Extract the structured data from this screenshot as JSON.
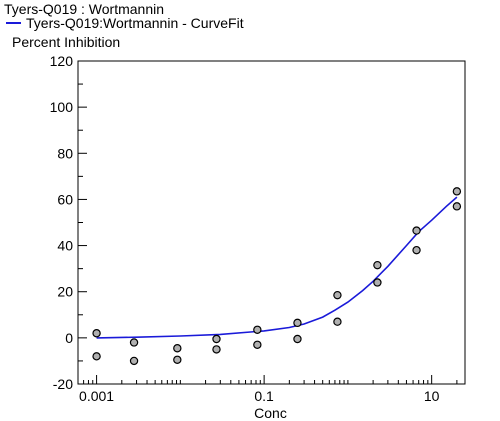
{
  "chart_data": {
    "type": "scatter",
    "title": "Tyers-Q019  : Wortmannin",
    "ylabel": "Percent Inhibition",
    "xlabel": "Conc",
    "xscale": "log",
    "xlim": [
      0.0006,
      25
    ],
    "ylim": [
      -20,
      120
    ],
    "yticks": [
      -20,
      0,
      20,
      40,
      60,
      80,
      100,
      120
    ],
    "xticks": [
      0.001,
      0.1,
      10
    ],
    "xtick_labels": [
      "0.001",
      "0.1",
      "10"
    ],
    "grid": false,
    "legend": [
      {
        "name": "Tyers-Q019:Wortmannin - CurveFit",
        "color": "#1a1ad9"
      }
    ],
    "points": [
      {
        "x": 0.001,
        "y": 2
      },
      {
        "x": 0.001,
        "y": -8
      },
      {
        "x": 0.0028,
        "y": -2
      },
      {
        "x": 0.0028,
        "y": -10
      },
      {
        "x": 0.0092,
        "y": -4.5
      },
      {
        "x": 0.0092,
        "y": -9.5
      },
      {
        "x": 0.027,
        "y": -0.5
      },
      {
        "x": 0.027,
        "y": -5
      },
      {
        "x": 0.083,
        "y": 3.5
      },
      {
        "x": 0.083,
        "y": -3
      },
      {
        "x": 0.25,
        "y": 6.5
      },
      {
        "x": 0.25,
        "y": -0.5
      },
      {
        "x": 0.75,
        "y": 18.5
      },
      {
        "x": 0.75,
        "y": 7
      },
      {
        "x": 2.25,
        "y": 31.5
      },
      {
        "x": 2.25,
        "y": 24
      },
      {
        "x": 6.6,
        "y": 46.5
      },
      {
        "x": 6.6,
        "y": 38
      },
      {
        "x": 20,
        "y": 63.5
      },
      {
        "x": 20,
        "y": 57
      }
    ],
    "curve": {
      "name": "Tyers-Q019:Wortmannin - CurveFit",
      "x": [
        0.001,
        0.003,
        0.01,
        0.03,
        0.1,
        0.2,
        0.3,
        0.5,
        0.7,
        1,
        1.5,
        2,
        3,
        5,
        7,
        10,
        15,
        20
      ],
      "y": [
        0,
        0.3,
        0.8,
        1.5,
        3,
        4.5,
        6,
        9,
        12,
        15.5,
        20.5,
        24.5,
        31,
        40,
        46,
        51,
        57,
        61
      ]
    },
    "point_fill": "#b0b0b0",
    "curve_color": "#1a1ad9"
  }
}
